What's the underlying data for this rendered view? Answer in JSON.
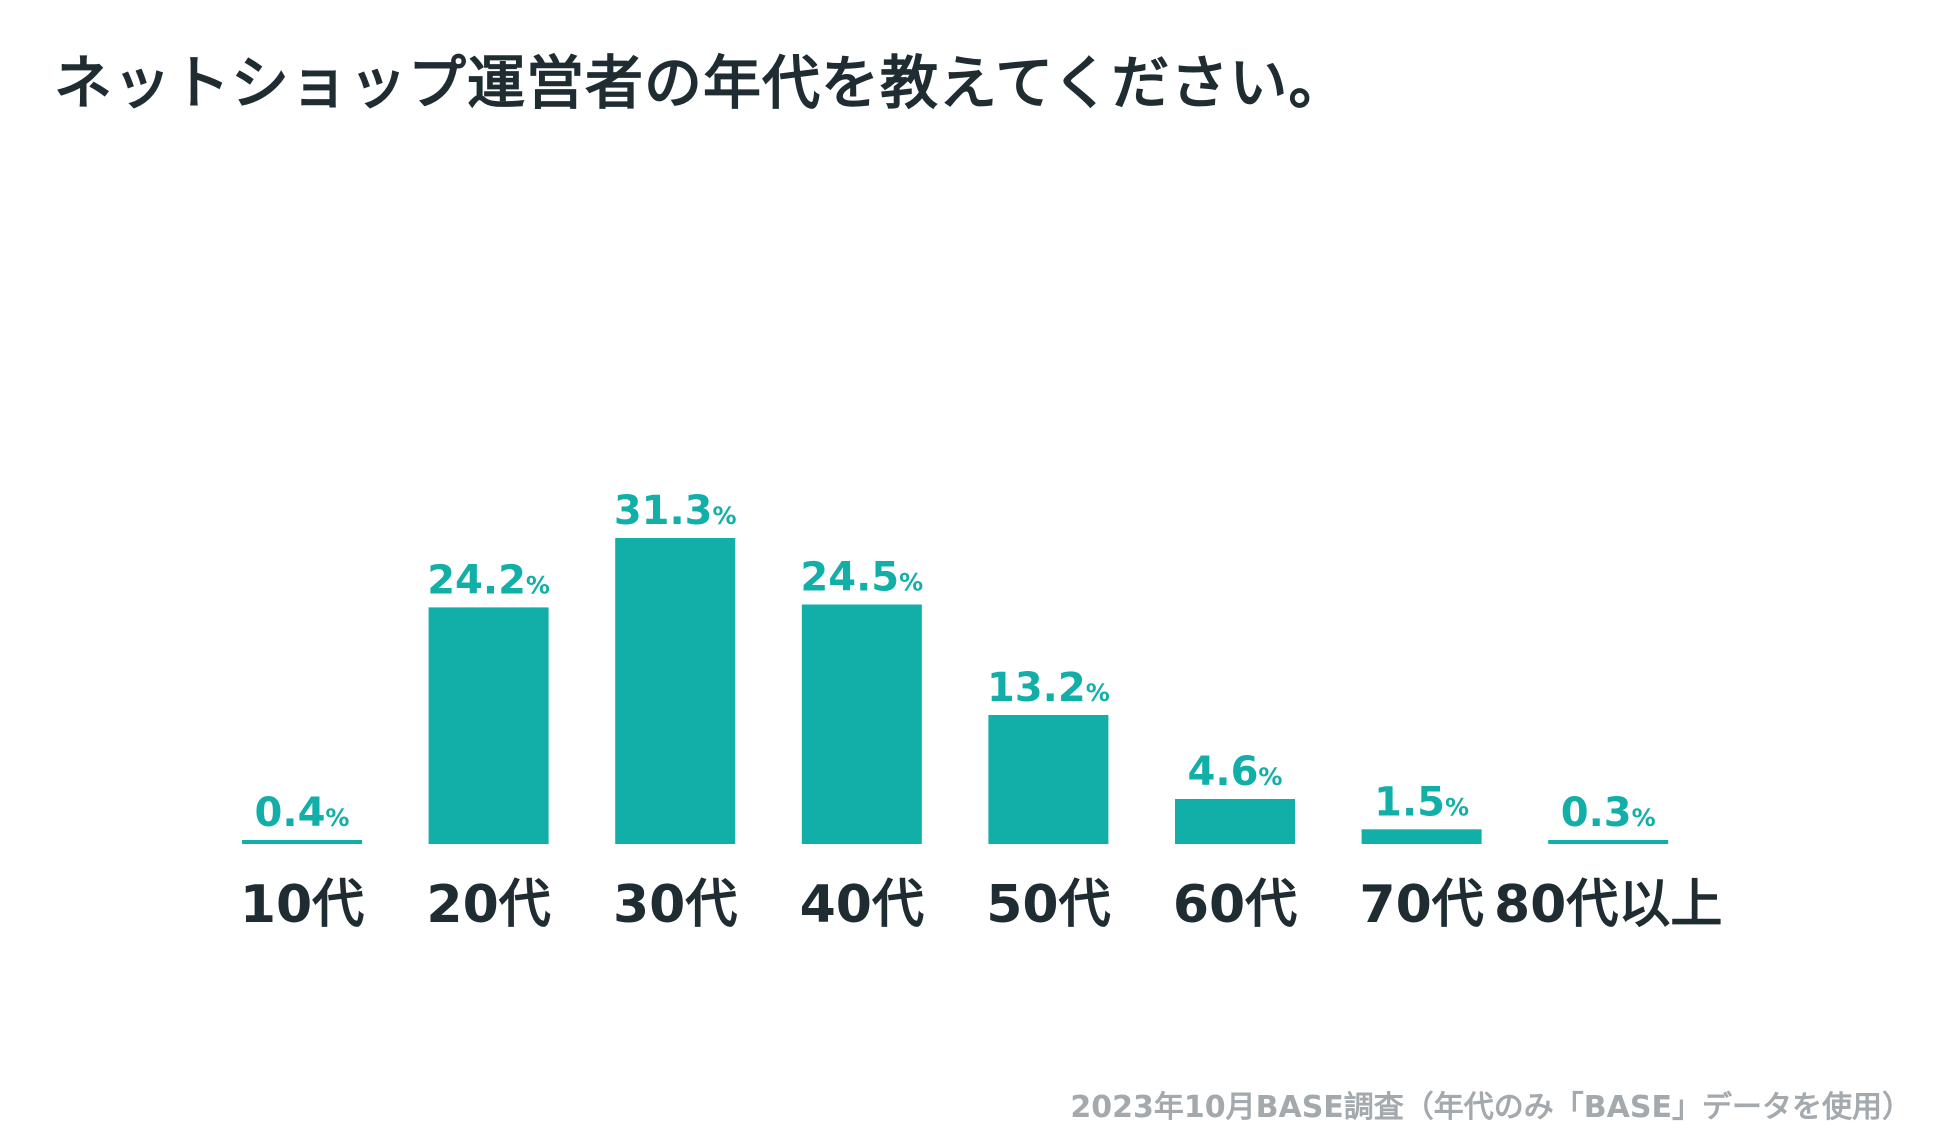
{
  "chart_data": {
    "type": "bar",
    "title": "ネットショップ運営者の年代を教えてください。",
    "categories": [
      "10代",
      "20代",
      "30代",
      "40代",
      "50代",
      "60代",
      "70代",
      "80代以上"
    ],
    "values": [
      0.4,
      24.2,
      31.3,
      24.5,
      13.2,
      4.6,
      1.5,
      0.3
    ],
    "value_labels": [
      "0.4",
      "24.2",
      "31.3",
      "24.5",
      "13.2",
      "4.6",
      "1.5",
      "0.3"
    ],
    "unit": "%",
    "xlabel": "",
    "ylabel": "",
    "grid": false,
    "legend": "none",
    "bar_color": "#12afa8",
    "label_color": "#12afa8",
    "category_color": "#1f2d33"
  },
  "source_note": "2023年10月BASE調査（年代のみ「BASE」データを使用）"
}
